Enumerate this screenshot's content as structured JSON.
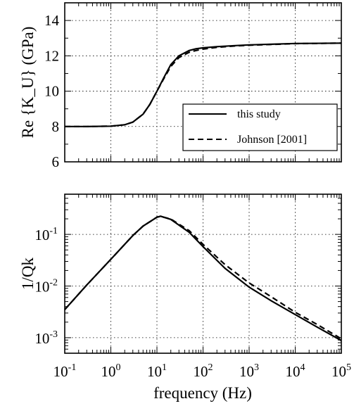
{
  "chart_data": [
    {
      "type": "line",
      "ylabel": "Re {K_U} (GPa)",
      "xlabel": "",
      "xscale": "log",
      "yscale": "linear",
      "xlim": [
        0.1,
        100000
      ],
      "ylim": [
        6,
        15
      ],
      "yticks": [
        "6",
        "8",
        "10",
        "12",
        "14"
      ],
      "grid": true,
      "legend": {
        "position": "right-middle",
        "entries": [
          "this study",
          "Johnson [2001]"
        ]
      },
      "series": [
        {
          "name": "this study",
          "style": "solid",
          "x": [
            0.1,
            0.3,
            1,
            2,
            3,
            5,
            7,
            10,
            14,
            20,
            30,
            50,
            70,
            100,
            200,
            500,
            1000,
            10000,
            100000
          ],
          "values": [
            8.0,
            8.0,
            8.02,
            8.1,
            8.25,
            8.7,
            9.25,
            10.0,
            10.75,
            11.5,
            12.0,
            12.3,
            12.4,
            12.45,
            12.52,
            12.58,
            12.62,
            12.7,
            12.72
          ]
        },
        {
          "name": "Johnson [2001]",
          "style": "dashed",
          "x": [
            0.1,
            0.3,
            1,
            2,
            3,
            5,
            7,
            10,
            14,
            20,
            30,
            50,
            70,
            100,
            200,
            500,
            1000,
            10000,
            100000
          ],
          "values": [
            8.0,
            8.0,
            8.02,
            8.1,
            8.25,
            8.7,
            9.25,
            10.0,
            10.7,
            11.4,
            11.9,
            12.2,
            12.3,
            12.38,
            12.48,
            12.56,
            12.6,
            12.69,
            12.72
          ]
        }
      ]
    },
    {
      "type": "line",
      "ylabel": "1/Qk",
      "xlabel": "frequency (Hz)",
      "xscale": "log",
      "yscale": "log",
      "xlim": [
        0.1,
        100000
      ],
      "ylim": [
        0.0005,
        0.6
      ],
      "xticks": [
        {
          "base": "10",
          "exp": "-1"
        },
        {
          "base": "10",
          "exp": "0"
        },
        {
          "base": "10",
          "exp": "1"
        },
        {
          "base": "10",
          "exp": "2"
        },
        {
          "base": "10",
          "exp": "3"
        },
        {
          "base": "10",
          "exp": "4"
        },
        {
          "base": "10",
          "exp": "5"
        }
      ],
      "yticks": [
        {
          "base": "10",
          "exp": "-3",
          "value": 0.001
        },
        {
          "base": "10",
          "exp": "-2",
          "value": 0.01
        },
        {
          "base": "10",
          "exp": "-1",
          "value": 0.1
        }
      ],
      "grid": true,
      "series": [
        {
          "name": "this study",
          "style": "solid",
          "x": [
            0.1,
            0.3,
            1,
            3,
            5,
            10,
            12,
            20,
            50,
            100,
            300,
            1000,
            3000,
            10000,
            30000,
            100000
          ],
          "values": [
            0.0035,
            0.0105,
            0.033,
            0.095,
            0.145,
            0.215,
            0.225,
            0.195,
            0.11,
            0.058,
            0.022,
            0.0095,
            0.0052,
            0.0028,
            0.0016,
            0.00088
          ]
        },
        {
          "name": "Johnson [2001]",
          "style": "dashed",
          "x": [
            0.1,
            0.3,
            1,
            3,
            5,
            10,
            12,
            20,
            50,
            100,
            300,
            1000,
            3000,
            10000,
            30000,
            100000
          ],
          "values": [
            0.0035,
            0.0105,
            0.033,
            0.095,
            0.145,
            0.215,
            0.223,
            0.198,
            0.118,
            0.064,
            0.026,
            0.0115,
            0.0062,
            0.0031,
            0.0018,
            0.00095
          ]
        }
      ]
    }
  ]
}
